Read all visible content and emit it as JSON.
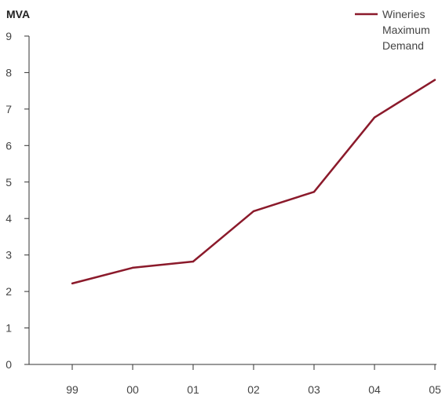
{
  "chart_data": {
    "type": "line",
    "title": "",
    "xlabel": "",
    "ylabel": "MVA",
    "categories": [
      "99",
      "00",
      "01",
      "02",
      "03",
      "04",
      "05"
    ],
    "series": [
      {
        "name": "Wineries Maximum Demand",
        "name_lines": [
          "Wineries",
          "Maximum",
          "Demand"
        ],
        "color": "#8b1a2b",
        "values": [
          2.22,
          2.65,
          2.82,
          4.2,
          4.73,
          6.77,
          7.8
        ]
      }
    ],
    "yticks": [
      0,
      1,
      2,
      3,
      4,
      5,
      6,
      7,
      8,
      9
    ],
    "ylim": [
      0,
      9
    ],
    "grid": false,
    "legend_position": "top-right"
  }
}
